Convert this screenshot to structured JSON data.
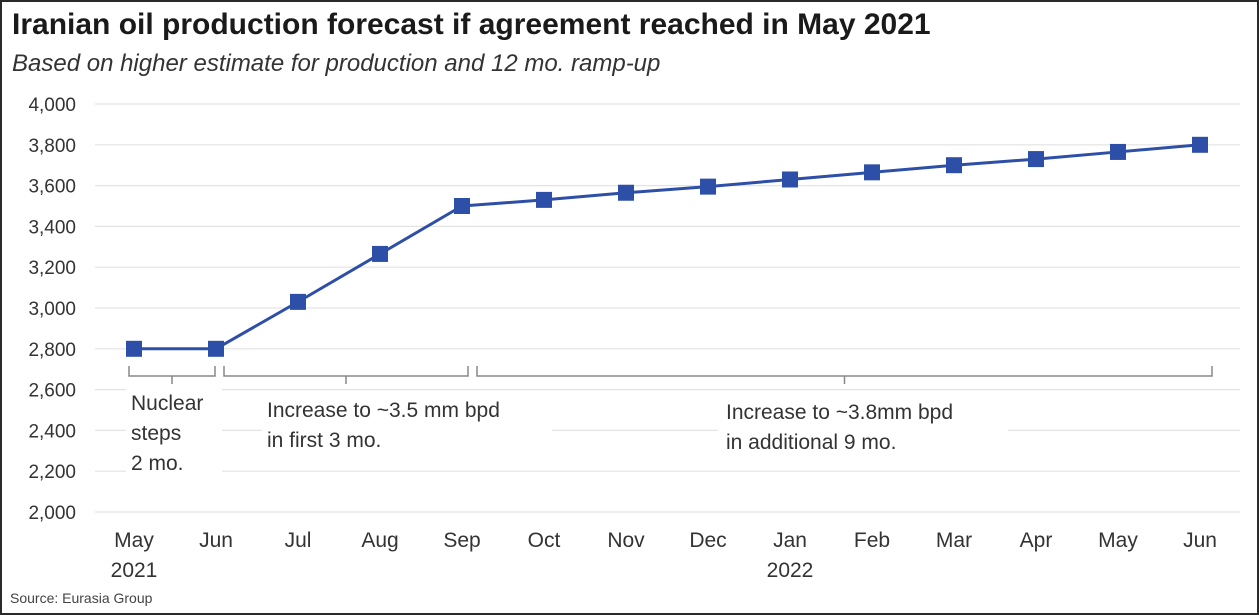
{
  "title": "Iranian oil production forecast if agreement reached in May 2021",
  "subtitle": "Based on higher estimate for production and 12 mo. ramp-up",
  "source": "Source: Eurasia Group",
  "colors": {
    "series": "#2e4fa8",
    "grid": "#e3e3e3",
    "bracket": "#888888",
    "text": "#333333"
  },
  "chart_data": {
    "type": "line",
    "x": [
      "May",
      "Jun",
      "Jul",
      "Aug",
      "Sep",
      "Oct",
      "Nov",
      "Dec",
      "Jan",
      "Feb",
      "Mar",
      "Apr",
      "May",
      "Jun"
    ],
    "x_sublabels": [
      "2021",
      "",
      "",
      "",
      "",
      "",
      "",
      "",
      "2022",
      "",
      "",
      "",
      "",
      ""
    ],
    "series": [
      {
        "values": [
          2800,
          2800,
          3030,
          3265,
          3500,
          3530,
          3565,
          3595,
          3630,
          3665,
          3700,
          3730,
          3765,
          3800
        ]
      }
    ],
    "ylim": [
      2000,
      4000
    ],
    "yticks": [
      2000,
      2200,
      2400,
      2600,
      2800,
      3000,
      3200,
      3400,
      3600,
      3800,
      4000
    ],
    "ytick_labels": [
      "2,000",
      "2,200",
      "2,400",
      "2,600",
      "2,800",
      "3,000",
      "3,200",
      "3,400",
      "3,600",
      "3,800",
      "4,000"
    ],
    "grid": true,
    "marker": "square",
    "annotations": [
      {
        "lines": [
          "Nuclear",
          "steps",
          "2 mo."
        ],
        "from_index": 0,
        "to_index": 1
      },
      {
        "lines": [
          "Increase to ~3.5 mm bpd",
          "in first 3 mo."
        ],
        "from_index": 1,
        "to_index": 4
      },
      {
        "lines": [
          "Increase to ~3.8mm bpd",
          "in additional 9 mo."
        ],
        "from_index": 4,
        "to_index": 13
      }
    ]
  }
}
